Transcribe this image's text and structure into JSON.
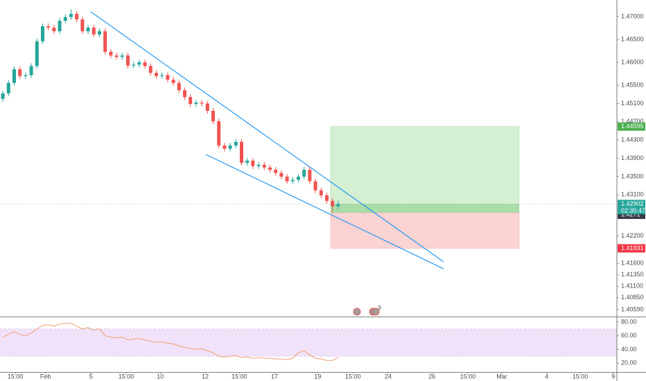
{
  "chart_data": [
    {
      "type": "candlestick",
      "up_color": "#26a69a",
      "down_color": "#ef5350",
      "x": [
        0,
        1,
        2,
        3,
        4,
        5,
        6,
        7,
        8,
        9,
        10,
        11,
        12,
        13,
        14,
        15,
        16,
        17,
        18,
        19,
        20,
        21,
        22,
        23,
        24,
        25,
        26,
        27,
        28,
        29,
        30,
        31,
        32,
        33,
        34,
        35,
        36,
        37,
        38,
        39,
        40,
        41,
        42,
        43,
        44,
        45,
        46,
        47,
        48,
        49,
        50,
        51,
        52,
        53,
        54,
        55,
        56,
        57,
        58,
        59
      ],
      "open": [
        1.452,
        1.4532,
        1.4555,
        1.4585,
        1.457,
        1.4572,
        1.4592,
        1.4646,
        1.4679,
        1.4676,
        1.4668,
        1.4691,
        1.4699,
        1.4706,
        1.4694,
        1.4668,
        1.4676,
        1.4661,
        1.4668,
        1.4623,
        1.4615,
        1.4612,
        1.4615,
        1.4593,
        1.4595,
        1.46,
        1.4592,
        1.4577,
        1.457,
        1.4572,
        1.4562,
        1.4555,
        1.4539,
        1.4524,
        1.4509,
        1.4512,
        1.451,
        1.4494,
        1.4471,
        1.4418,
        1.4411,
        1.4418,
        1.4426,
        1.438,
        1.4385,
        1.4373,
        1.4376,
        1.437,
        1.4365,
        1.4358,
        1.435,
        1.434,
        1.4343,
        1.435,
        1.4365,
        1.434,
        1.432,
        1.4309,
        1.4297,
        1.4285
      ],
      "high": [
        1.4538,
        1.4561,
        1.4591,
        1.4591,
        1.4578,
        1.4598,
        1.4652,
        1.4685,
        1.4685,
        1.4682,
        1.4697,
        1.4705,
        1.4716,
        1.4712,
        1.47,
        1.4682,
        1.4682,
        1.4674,
        1.4674,
        1.4629,
        1.4621,
        1.4621,
        1.4621,
        1.4601,
        1.4606,
        1.4606,
        1.4598,
        1.4583,
        1.4578,
        1.4578,
        1.4568,
        1.4561,
        1.4545,
        1.453,
        1.4518,
        1.4518,
        1.4516,
        1.45,
        1.4477,
        1.4424,
        1.4424,
        1.4432,
        1.4432,
        1.4391,
        1.4391,
        1.4382,
        1.4382,
        1.4376,
        1.4371,
        1.4364,
        1.4356,
        1.4349,
        1.4356,
        1.4371,
        1.4371,
        1.4346,
        1.4326,
        1.4315,
        1.4303,
        1.4298
      ],
      "low": [
        1.4514,
        1.4526,
        1.4549,
        1.4564,
        1.4564,
        1.4566,
        1.4586,
        1.464,
        1.467,
        1.4662,
        1.4662,
        1.4685,
        1.4693,
        1.4688,
        1.4662,
        1.4662,
        1.4655,
        1.4655,
        1.4617,
        1.4609,
        1.4606,
        1.4606,
        1.4587,
        1.4587,
        1.4589,
        1.4586,
        1.4571,
        1.4564,
        1.4564,
        1.4556,
        1.4549,
        1.4533,
        1.4518,
        1.4503,
        1.4503,
        1.4504,
        1.4488,
        1.4465,
        1.4412,
        1.4405,
        1.4405,
        1.4412,
        1.4374,
        1.4374,
        1.4367,
        1.4367,
        1.4364,
        1.4359,
        1.4352,
        1.4344,
        1.4334,
        1.4334,
        1.4337,
        1.4344,
        1.4334,
        1.4314,
        1.4303,
        1.4291,
        1.4271,
        1.4279
      ],
      "close": [
        1.4532,
        1.4555,
        1.4585,
        1.457,
        1.4572,
        1.4592,
        1.4646,
        1.4679,
        1.4676,
        1.4668,
        1.4691,
        1.4699,
        1.4706,
        1.4694,
        1.4668,
        1.4676,
        1.4661,
        1.4668,
        1.4623,
        1.4615,
        1.4612,
        1.4615,
        1.4593,
        1.4595,
        1.46,
        1.4592,
        1.4577,
        1.457,
        1.4572,
        1.4562,
        1.4555,
        1.4539,
        1.4524,
        1.4509,
        1.4512,
        1.451,
        1.4494,
        1.4471,
        1.4418,
        1.4411,
        1.4418,
        1.4426,
        1.438,
        1.4385,
        1.4373,
        1.4376,
        1.437,
        1.4365,
        1.4358,
        1.435,
        1.434,
        1.4343,
        1.435,
        1.4365,
        1.434,
        1.432,
        1.4309,
        1.4297,
        1.4285,
        1.429
      ],
      "xlim": [
        -0.5,
        108.04
      ],
      "ylim": [
        1.40438,
        1.47364
      ],
      "yticks": [
        {
          "value": 1.47,
          "label": "1.47000"
        },
        {
          "value": 1.465,
          "label": "1.46500"
        },
        {
          "value": 1.46,
          "label": "1.46000"
        },
        {
          "value": 1.455,
          "label": "1.45500"
        },
        {
          "value": 1.451,
          "label": "1.45100"
        },
        {
          "value": 1.447,
          "label": "1.44700"
        },
        {
          "value": 1.443,
          "label": "1.44300"
        },
        {
          "value": 1.439,
          "label": "1.43900"
        },
        {
          "value": 1.435,
          "label": "1.43500"
        },
        {
          "value": 1.431,
          "label": "1.43100"
        },
        {
          "value": 1.422,
          "label": "1.42200"
        },
        {
          "value": 1.416,
          "label": "1.41600"
        },
        {
          "value": 1.4135,
          "label": "1.41350"
        },
        {
          "value": 1.411,
          "label": "1.41100"
        },
        {
          "value": 1.4085,
          "label": "1.40850"
        },
        {
          "value": 1.4059,
          "label": "1.40590"
        }
      ],
      "position": {
        "target": 1.44595,
        "current": 1.42902,
        "countdown": "02:35:47",
        "entry": 1.4271,
        "stop": 1.41931,
        "target_color": "#4caf50",
        "current_color": "#26a69a",
        "entry_color": "#363a45",
        "stop_color": "#f23645"
      },
      "event_count": 3
    },
    {
      "type": "line",
      "color": "#f0a070",
      "x": [
        0,
        1,
        2,
        3,
        4,
        5,
        6,
        7,
        8,
        9,
        10,
        11,
        12,
        13,
        14,
        15,
        16,
        17,
        18,
        19,
        20,
        21,
        22,
        23,
        24,
        25,
        26,
        27,
        28,
        29,
        30,
        31,
        32,
        33,
        34,
        35,
        36,
        37,
        38,
        39,
        40,
        41,
        42,
        43,
        44,
        45,
        46,
        47,
        48,
        49,
        50,
        51,
        52,
        53,
        54,
        55,
        56,
        57,
        58,
        59
      ],
      "values": [
        58,
        62,
        66,
        62,
        60,
        64,
        70,
        75,
        76,
        74,
        77,
        78,
        78,
        74,
        70,
        72,
        68,
        70,
        60,
        58,
        57,
        58,
        54,
        55,
        56,
        54,
        52,
        50,
        51,
        49,
        48,
        45,
        43,
        41,
        40,
        41,
        38,
        35,
        30,
        29,
        30,
        31,
        28,
        29,
        27,
        28,
        27,
        27,
        26,
        26,
        25,
        27,
        35,
        38,
        32,
        27,
        26,
        24,
        24,
        28
      ],
      "band": [
        30,
        70
      ],
      "band_color": "#e9d5f7",
      "xlim": [
        -0.5,
        108.04
      ],
      "ylim": [
        7,
        85
      ],
      "yticks": [
        {
          "value": 80,
          "label": "80.00"
        },
        {
          "value": 60,
          "label": "60.00"
        },
        {
          "value": 40,
          "label": "40.00"
        },
        {
          "value": 20,
          "label": "20.00"
        }
      ],
      "xticks": [
        {
          "value": 2.2,
          "label": "15:00"
        },
        {
          "value": 7.5,
          "label": "Feb"
        },
        {
          "value": 15.5,
          "label": "5"
        },
        {
          "value": 21.7,
          "label": "15:00"
        },
        {
          "value": 27.7,
          "label": "10"
        },
        {
          "value": 35.6,
          "label": "12"
        },
        {
          "value": 41.6,
          "label": "15:00"
        },
        {
          "value": 47.8,
          "label": "17"
        },
        {
          "value": 55.4,
          "label": "19"
        },
        {
          "value": 61.6,
          "label": "15:00"
        },
        {
          "value": 67.8,
          "label": "24"
        },
        {
          "value": 75.5,
          "label": "26"
        },
        {
          "value": 81.8,
          "label": "15:00"
        },
        {
          "value": 87.8,
          "label": "Mar"
        },
        {
          "value": 95.7,
          "label": "4"
        },
        {
          "value": 101.6,
          "label": "15:00"
        },
        {
          "value": 107.4,
          "label": "9"
        }
      ]
    }
  ]
}
